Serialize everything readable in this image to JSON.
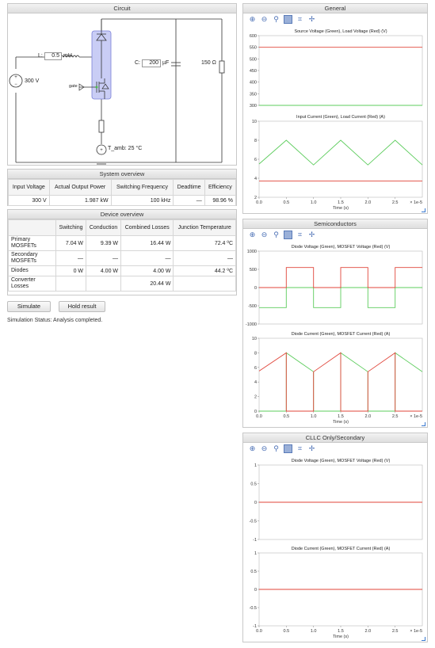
{
  "circuit": {
    "title": "Circuit",
    "inductor_label": "L:",
    "inductor_value": "0.5",
    "inductor_unit": "mH",
    "capacitor_label": "C:",
    "capacitor_value": "200",
    "capacitor_unit": "µF",
    "resistor_value": "150 Ω",
    "source_value": "300 V",
    "gate_label": "gate",
    "ambient_label": "T_amb: 25 °C"
  },
  "system_overview": {
    "title": "System overview",
    "headers": [
      "Input Voltage",
      "Actual Output Power",
      "Switching Frequency",
      "Deadtime",
      "Efficiency"
    ],
    "values": [
      "300 V",
      "1.987 kW",
      "100 kHz",
      "—",
      "98.96 %"
    ]
  },
  "device_overview": {
    "title": "Device overview",
    "headers": [
      "",
      "Switching",
      "Conduction",
      "Combined Losses",
      "Junction Temperature"
    ],
    "rows": [
      {
        "label": "Primary MOSFETs",
        "cells": [
          "7.04 W",
          "9.39 W",
          "16.44 W",
          "72.4 ºC"
        ]
      },
      {
        "label": "Secondary MOSFETs",
        "cells": [
          "—",
          "—",
          "—",
          "—"
        ]
      },
      {
        "label": "Diodes",
        "cells": [
          "0 W",
          "4.00 W",
          "4.00 W",
          "44.2 ºC"
        ]
      },
      {
        "label": "Converter Losses",
        "cells": [
          "",
          "",
          "20.44 W",
          ""
        ]
      }
    ]
  },
  "buttons": {
    "simulate": "Simulate",
    "hold": "Hold result"
  },
  "status": "Simulation Status: Analysis completed.",
  "colors": {
    "green": "#5ccc5c",
    "red": "#e0453a",
    "toolbar": "#4a6fb5"
  },
  "panels": {
    "general": {
      "title": "General",
      "charts": [
        {
          "title": "Source Voltage (Green), Load Voltage (Red) (V)",
          "ylim": [
            300,
            600
          ],
          "yticks": [
            300,
            350,
            400,
            450,
            500,
            550,
            600
          ],
          "xticks": [],
          "xlabel": "",
          "xfactor": "",
          "series": [
            {
              "color": "red",
              "x": [
                0,
                3
              ],
              "y": [
                550,
                550
              ]
            },
            {
              "color": "green",
              "x": [
                0,
                3
              ],
              "y": [
                300,
                300
              ]
            }
          ]
        },
        {
          "title": "Input Current (Green), Load Current (Red) (A)",
          "ylim": [
            2,
            10
          ],
          "yticks": [
            2,
            4,
            6,
            8,
            10
          ],
          "xticks": [
            "0.0",
            "0.5",
            "1.0",
            "1.5",
            "2.0",
            "2.5"
          ],
          "xlabel": "Time (s)",
          "xfactor": "× 1e-5",
          "series": [
            {
              "color": "green",
              "x": [
                0,
                0.5,
                1.0,
                1.5,
                2.0,
                2.5,
                3.0
              ],
              "y": [
                5.5,
                8.0,
                5.4,
                8.0,
                5.4,
                8.0,
                5.4
              ]
            },
            {
              "color": "red",
              "x": [
                0,
                3
              ],
              "y": [
                3.7,
                3.7
              ]
            }
          ]
        }
      ]
    },
    "semiconductors": {
      "title": "Semiconductors",
      "charts": [
        {
          "title": "Diode Voltage (Green), MOSFET Voltage (Red) (V)",
          "ylim": [
            -1000,
            1000
          ],
          "yticks": [
            -1000,
            -500,
            0,
            500,
            1000
          ],
          "xticks": [],
          "xlabel": "",
          "xfactor": "",
          "series": [
            {
              "color": "green",
              "x": [
                0,
                0.5,
                0.5,
                1.0,
                1.0,
                1.5,
                1.5,
                2.0,
                2.0,
                2.5,
                2.5,
                3.0
              ],
              "y": [
                -550,
                -550,
                0,
                0,
                -550,
                -550,
                0,
                0,
                -550,
                -550,
                0,
                0
              ]
            },
            {
              "color": "red",
              "x": [
                0,
                0.5,
                0.5,
                1.0,
                1.0,
                1.5,
                1.5,
                2.0,
                2.0,
                2.5,
                2.5,
                3.0
              ],
              "y": [
                0,
                0,
                550,
                550,
                0,
                0,
                550,
                550,
                0,
                0,
                550,
                550
              ]
            }
          ]
        },
        {
          "title": "Diode Current (Green), MOSFET Current (Red) (A)",
          "ylim": [
            0,
            10
          ],
          "yticks": [
            0,
            2,
            4,
            6,
            8,
            10
          ],
          "xticks": [
            "0.0",
            "0.5",
            "1.0",
            "1.5",
            "2.0",
            "2.5"
          ],
          "xlabel": "Time (s)",
          "xfactor": "× 1e-5",
          "series": [
            {
              "color": "green",
              "x": [
                0,
                0.5,
                0.5,
                1.0,
                1.0,
                1.5,
                1.5,
                2.0,
                2.0,
                2.5,
                2.5,
                3.0
              ],
              "y": [
                0,
                0,
                8.0,
                5.4,
                0,
                0,
                8.0,
                5.4,
                0,
                0,
                8.0,
                5.4
              ]
            },
            {
              "color": "red",
              "x": [
                0,
                0.5,
                0.5,
                1.0,
                1.0,
                1.5,
                1.5,
                2.0,
                2.0,
                2.5,
                2.5,
                3.0
              ],
              "y": [
                5.5,
                8.0,
                0,
                0,
                5.4,
                8.0,
                0,
                0,
                5.4,
                8.0,
                0,
                0
              ]
            }
          ]
        }
      ]
    },
    "cllc": {
      "title": "CLLC Only/Secondary",
      "charts": [
        {
          "title": "Diode Voltage (Green), MOSFET Voltage (Red) (V)",
          "ylim": [
            -1,
            1
          ],
          "yticks": [
            -1.0,
            -0.5,
            0.0,
            0.5,
            1.0
          ],
          "xticks": [],
          "xlabel": "",
          "xfactor": "",
          "series": [
            {
              "color": "green",
              "x": [
                0,
                3
              ],
              "y": [
                0,
                0
              ]
            },
            {
              "color": "red",
              "x": [
                0,
                3
              ],
              "y": [
                0,
                0
              ]
            }
          ]
        },
        {
          "title": "Diode Current (Green), MOSFET Current (Red) (A)",
          "ylim": [
            -1,
            1
          ],
          "yticks": [
            -1.0,
            -0.5,
            0.0,
            0.5,
            1.0
          ],
          "xticks": [
            "0.0",
            "0.5",
            "1.0",
            "1.5",
            "2.0",
            "2.5"
          ],
          "xlabel": "Time (s)",
          "xfactor": "× 1e-5",
          "series": [
            {
              "color": "green",
              "x": [
                0,
                3
              ],
              "y": [
                0,
                0
              ]
            },
            {
              "color": "red",
              "x": [
                0,
                3
              ],
              "y": [
                0,
                0
              ]
            }
          ]
        }
      ]
    }
  }
}
